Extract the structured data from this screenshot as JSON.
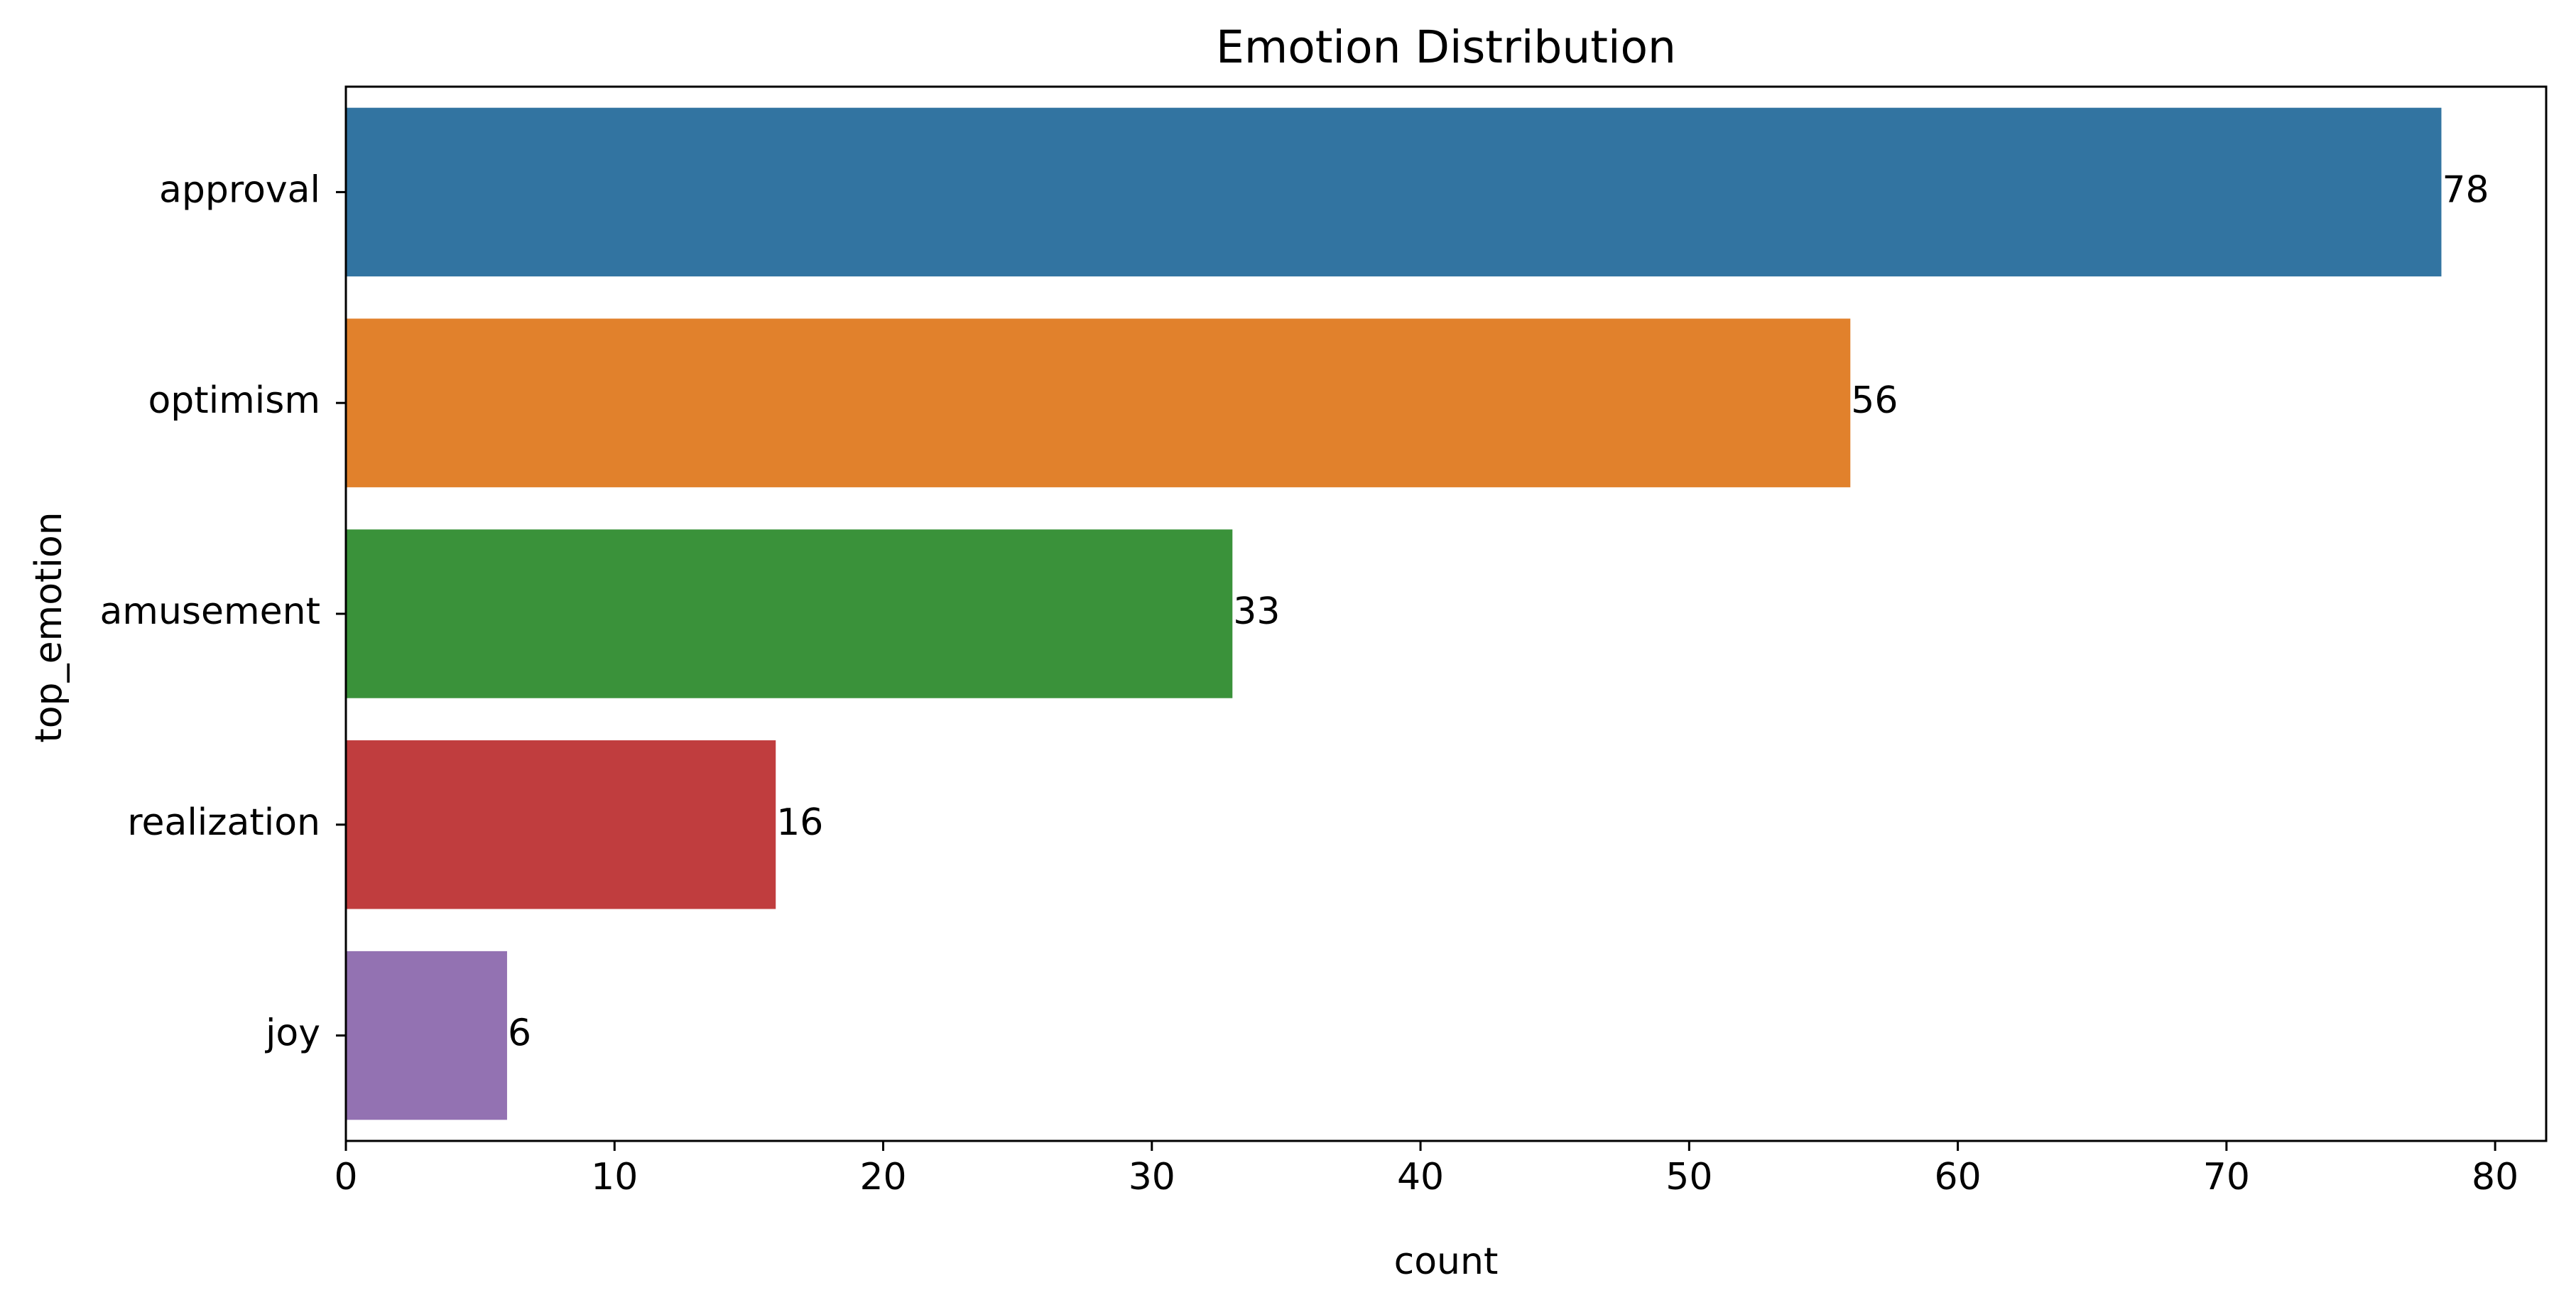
{
  "chart_data": {
    "type": "bar",
    "orientation": "horizontal",
    "title": "Emotion Distribution",
    "xlabel": "count",
    "ylabel": "top_emotion",
    "categories": [
      "approval",
      "optimism",
      "amusement",
      "realization",
      "joy"
    ],
    "values": [
      78,
      56,
      33,
      16,
      6
    ],
    "data_labels": [
      "78",
      "56",
      "33",
      "16",
      "6"
    ],
    "colors": [
      "#3274a1",
      "#e1812c",
      "#3a923a",
      "#c03d3e",
      "#9372b2"
    ],
    "xlim": [
      0,
      81.9
    ],
    "xticks": [
      0,
      10,
      20,
      30,
      40,
      50,
      60,
      70,
      80
    ],
    "xtick_labels": [
      "0",
      "10",
      "20",
      "30",
      "40",
      "50",
      "60",
      "70",
      "80"
    ],
    "grid": false,
    "legend": "none"
  }
}
